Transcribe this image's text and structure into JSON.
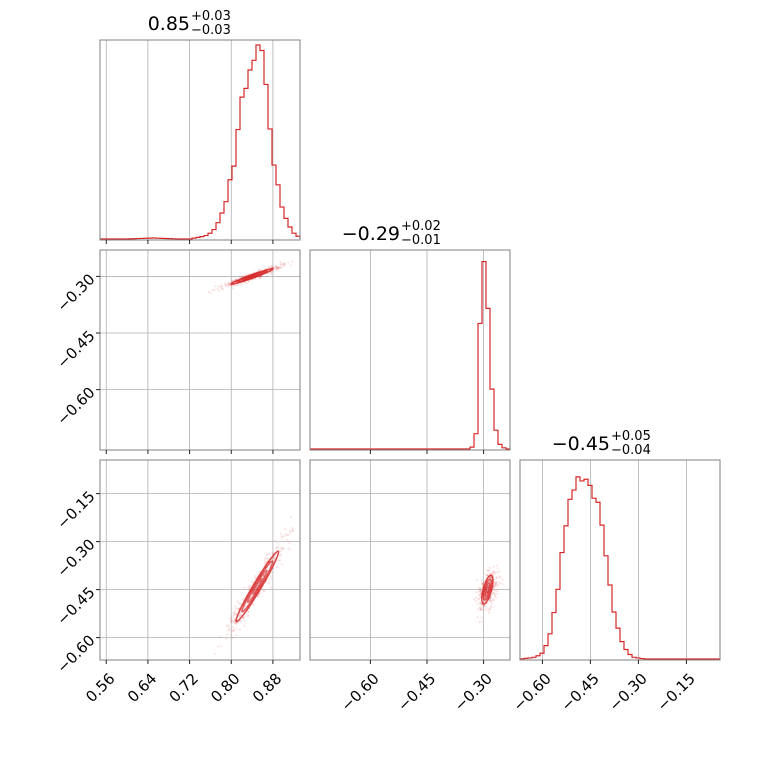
{
  "chart_data": {
    "type": "corner",
    "color": "#d62728",
    "grid": true,
    "parameters": [
      {
        "index": 0,
        "median": 0.85,
        "title": {
          "value": "0.85",
          "upper": "+0.03",
          "lower": "−0.03"
        },
        "range": [
          0.548,
          0.932
        ],
        "ticks": [
          0.56,
          0.64,
          0.72,
          0.8,
          0.88
        ],
        "tick_labels": [
          "0.56",
          "0.64",
          "0.72",
          "0.80",
          "0.88"
        ],
        "density": [
          [
            0.55,
            0.0
          ],
          [
            0.6,
            0.0
          ],
          [
            0.65,
            0.005
          ],
          [
            0.7,
            0.0
          ],
          [
            0.72,
            0.0
          ],
          [
            0.75,
            0.015
          ],
          [
            0.76,
            0.03
          ],
          [
            0.77,
            0.055
          ],
          [
            0.78,
            0.12
          ],
          [
            0.79,
            0.2
          ],
          [
            0.8,
            0.31
          ],
          [
            0.81,
            0.46
          ],
          [
            0.82,
            0.68
          ],
          [
            0.83,
            0.83
          ],
          [
            0.84,
            0.9
          ],
          [
            0.85,
            0.93
          ],
          [
            0.86,
            0.88
          ],
          [
            0.87,
            0.66
          ],
          [
            0.88,
            0.43
          ],
          [
            0.89,
            0.25
          ],
          [
            0.9,
            0.13
          ],
          [
            0.91,
            0.07
          ],
          [
            0.92,
            0.03
          ],
          [
            0.93,
            0.01
          ]
        ]
      },
      {
        "index": 1,
        "median": -0.29,
        "title": {
          "value": "−0.29",
          "upper": "+0.02",
          "lower": "−0.01"
        },
        "range": [
          -0.76,
          -0.23
        ],
        "ticks": [
          -0.6,
          -0.45,
          -0.3
        ],
        "tick_labels": [
          "−0.60",
          "−0.45",
          "−0.30"
        ],
        "density": [
          [
            -0.76,
            0.0
          ],
          [
            -0.34,
            0.0
          ],
          [
            -0.33,
            0.01
          ],
          [
            -0.32,
            0.08
          ],
          [
            -0.31,
            0.6
          ],
          [
            -0.3,
            0.93
          ],
          [
            -0.29,
            0.78
          ],
          [
            -0.28,
            0.36
          ],
          [
            -0.27,
            0.12
          ],
          [
            -0.26,
            0.03
          ],
          [
            -0.25,
            0.01
          ],
          [
            -0.24,
            0.0
          ]
        ]
      },
      {
        "index": 2,
        "median": -0.45,
        "title": {
          "value": "−0.45",
          "upper": "+0.05",
          "lower": "−0.04"
        },
        "range": [
          -0.67,
          -0.045
        ],
        "ticks": [
          -0.6,
          -0.45,
          -0.3,
          -0.15
        ],
        "tick_labels": [
          "−0.60",
          "−0.45",
          "−0.30",
          "−0.15"
        ],
        "density": [
          [
            -0.67,
            0.0
          ],
          [
            -0.64,
            0.005
          ],
          [
            -0.62,
            0.01
          ],
          [
            -0.6,
            0.03
          ],
          [
            -0.58,
            0.1
          ],
          [
            -0.56,
            0.27
          ],
          [
            -0.54,
            0.5
          ],
          [
            -0.52,
            0.78
          ],
          [
            -0.5,
            0.89
          ],
          [
            -0.48,
            0.91
          ],
          [
            -0.46,
            0.93
          ],
          [
            -0.44,
            0.86
          ],
          [
            -0.42,
            0.71
          ],
          [
            -0.4,
            0.48
          ],
          [
            -0.38,
            0.27
          ],
          [
            -0.36,
            0.12
          ],
          [
            -0.34,
            0.05
          ],
          [
            -0.32,
            0.01
          ],
          [
            -0.3,
            0.005
          ],
          [
            -0.28,
            0.0
          ],
          [
            -0.045,
            0.0
          ]
        ]
      }
    ],
    "pairs": [
      {
        "x": 0,
        "y": 1,
        "center": [
          0.84,
          -0.3
        ],
        "direction": [
          0.08,
          0.04
        ],
        "sigmas": [
          1.3,
          0.08
        ],
        "spread": [
          0.05,
          0.009
        ]
      },
      {
        "x": 0,
        "y": 2,
        "center": [
          0.85,
          -0.44
        ],
        "direction": [
          0.08,
          0.22
        ],
        "sigmas": [
          1.2,
          0.06
        ],
        "spread": [
          0.06,
          0.012
        ]
      },
      {
        "x": 1,
        "y": 2,
        "center": [
          -0.29,
          -0.45
        ],
        "direction": [
          0.02,
          0.09
        ],
        "sigmas": [
          1.2,
          0.2
        ],
        "spread": [
          0.06,
          0.01
        ]
      }
    ]
  }
}
